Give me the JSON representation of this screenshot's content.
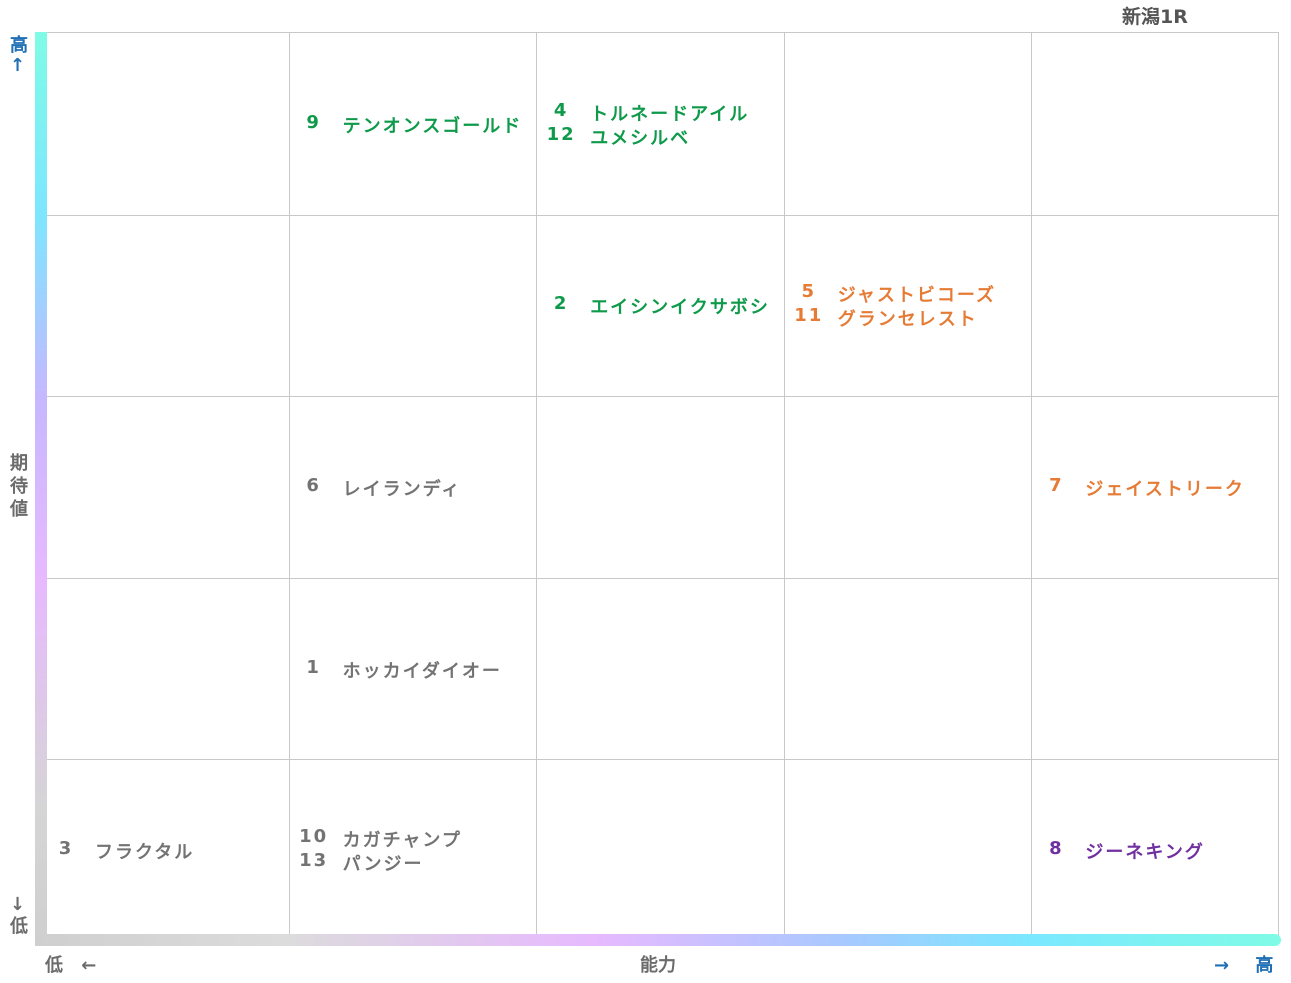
{
  "title": "新潟1R",
  "y_axis": {
    "high": "高↑",
    "label": "期待値",
    "low": "↓低"
  },
  "x_axis": {
    "low": "低 ←",
    "label": "能力",
    "high": "→ 高"
  },
  "grid": {
    "rows": [
      [
        [],
        [
          {
            "number": "9",
            "name": "テンオンスゴールド",
            "color": "#0e9a4a"
          }
        ],
        [
          {
            "number": "4",
            "name": "トルネードアイル",
            "color": "#0e9a4a"
          },
          {
            "number": "12",
            "name": "ユメシルベ",
            "color": "#0e9a4a"
          }
        ],
        [],
        []
      ],
      [
        [],
        [],
        [
          {
            "number": "2",
            "name": "エイシンイクサボシ",
            "color": "#0e9a4a"
          }
        ],
        [
          {
            "number": "5",
            "name": "ジャストビコーズ",
            "color": "#e57b35"
          },
          {
            "number": "11",
            "name": "グランセレスト",
            "color": "#e57b35"
          }
        ],
        []
      ],
      [
        [],
        [
          {
            "number": "6",
            "name": "レイランディ",
            "color": "#737373"
          }
        ],
        [],
        [],
        [
          {
            "number": "7",
            "name": "ジェイストリーク",
            "color": "#e57b35"
          }
        ]
      ],
      [
        [],
        [
          {
            "number": "1",
            "name": "ホッカイダイオー",
            "color": "#737373"
          }
        ],
        [],
        [],
        []
      ],
      [
        [
          {
            "number": "3",
            "name": "フラクタル",
            "color": "#737373"
          }
        ],
        [
          {
            "number": "10",
            "name": "カガチャンプ",
            "color": "#737373"
          },
          {
            "number": "13",
            "name": "パンジー",
            "color": "#737373"
          }
        ],
        [],
        [],
        [
          {
            "number": "8",
            "name": "ジーネキング",
            "color": "#7030a0"
          }
        ]
      ]
    ]
  }
}
